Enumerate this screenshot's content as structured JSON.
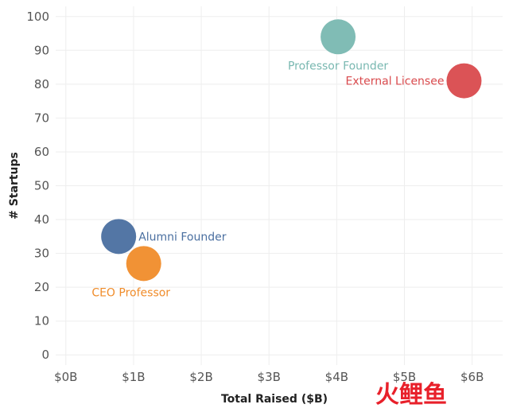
{
  "chart_data": {
    "type": "scatter",
    "title": "",
    "xlabel": "Total Raised ($B)",
    "ylabel": "# Startups",
    "xlim": [
      -0.15,
      6.45
    ],
    "ylim": [
      -3,
      103
    ],
    "x_ticks": [
      0,
      1,
      2,
      3,
      4,
      5,
      6
    ],
    "x_tick_labels": [
      "$0B",
      "$1B",
      "$2B",
      "$3B",
      "$4B",
      "$5B",
      "$6B"
    ],
    "y_ticks": [
      0,
      10,
      20,
      30,
      40,
      50,
      60,
      70,
      80,
      90,
      100
    ],
    "y_tick_labels": [
      "0",
      "10",
      "20",
      "30",
      "40",
      "50",
      "60",
      "70",
      "80",
      "90",
      "100"
    ],
    "grid": true,
    "points": [
      {
        "label": "Alumni Founder",
        "x": 0.78,
        "y": 35,
        "color": "#4a6fa0",
        "label_position": "right"
      },
      {
        "label": "CEO Professor",
        "x": 1.15,
        "y": 27,
        "color": "#f08c2a",
        "label_position": "below-left"
      },
      {
        "label": "Professor Founder",
        "x": 4.02,
        "y": 94,
        "color": "#79b8b1",
        "label_position": "below"
      },
      {
        "label": "External Licensee",
        "x": 5.88,
        "y": 81,
        "color": "#d94a4d",
        "label_position": "left"
      }
    ]
  },
  "watermark": {
    "text": "火鲤鱼",
    "color": "#e8202a"
  }
}
